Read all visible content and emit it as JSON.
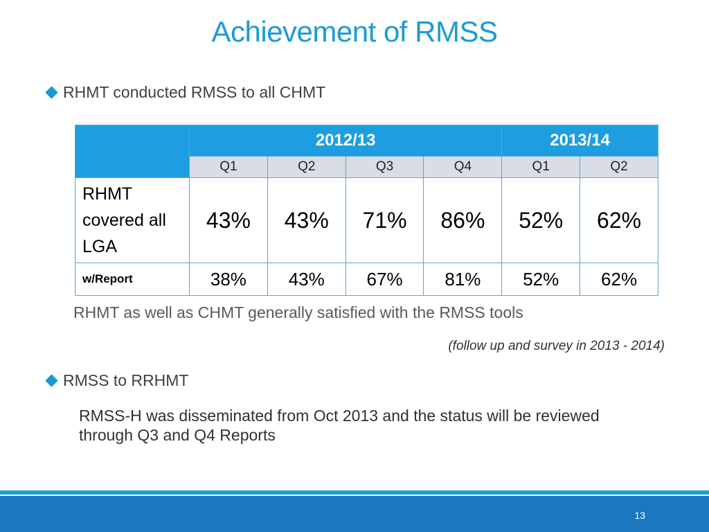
{
  "slide": {
    "title": "Achievement of RMSS",
    "bullet1": "RHMT conducted RMSS to all CHMT",
    "note": "RHMT as well as CHMT generally satisfied with the RMSS tools",
    "citation": "(follow up and survey in 2013 - 2014)",
    "bullet2": "RMSS to RRHMT",
    "paragraph": "RMSS-H was disseminated from Oct 2013 and the status will be reviewed through Q3 and Q4 Reports",
    "page_number": "13"
  },
  "table": {
    "years": [
      "2012/13",
      "2013/14"
    ],
    "quarters": [
      "Q1",
      "Q2",
      "Q3",
      "Q4",
      "Q1",
      "Q2"
    ],
    "rows": [
      {
        "label": "RHMT covered all LGA",
        "values": [
          "43%",
          "43%",
          "71%",
          "86%",
          "52%",
          "62%"
        ]
      },
      {
        "label": "w/Report",
        "values": [
          "38%",
          "43%",
          "67%",
          "81%",
          "52%",
          "62%"
        ]
      }
    ]
  },
  "colors": {
    "accent": "#1b9ad6",
    "header_fill": "#1e9ee0",
    "subheader_fill": "#d9dde6",
    "footer": "#1a77c0"
  }
}
